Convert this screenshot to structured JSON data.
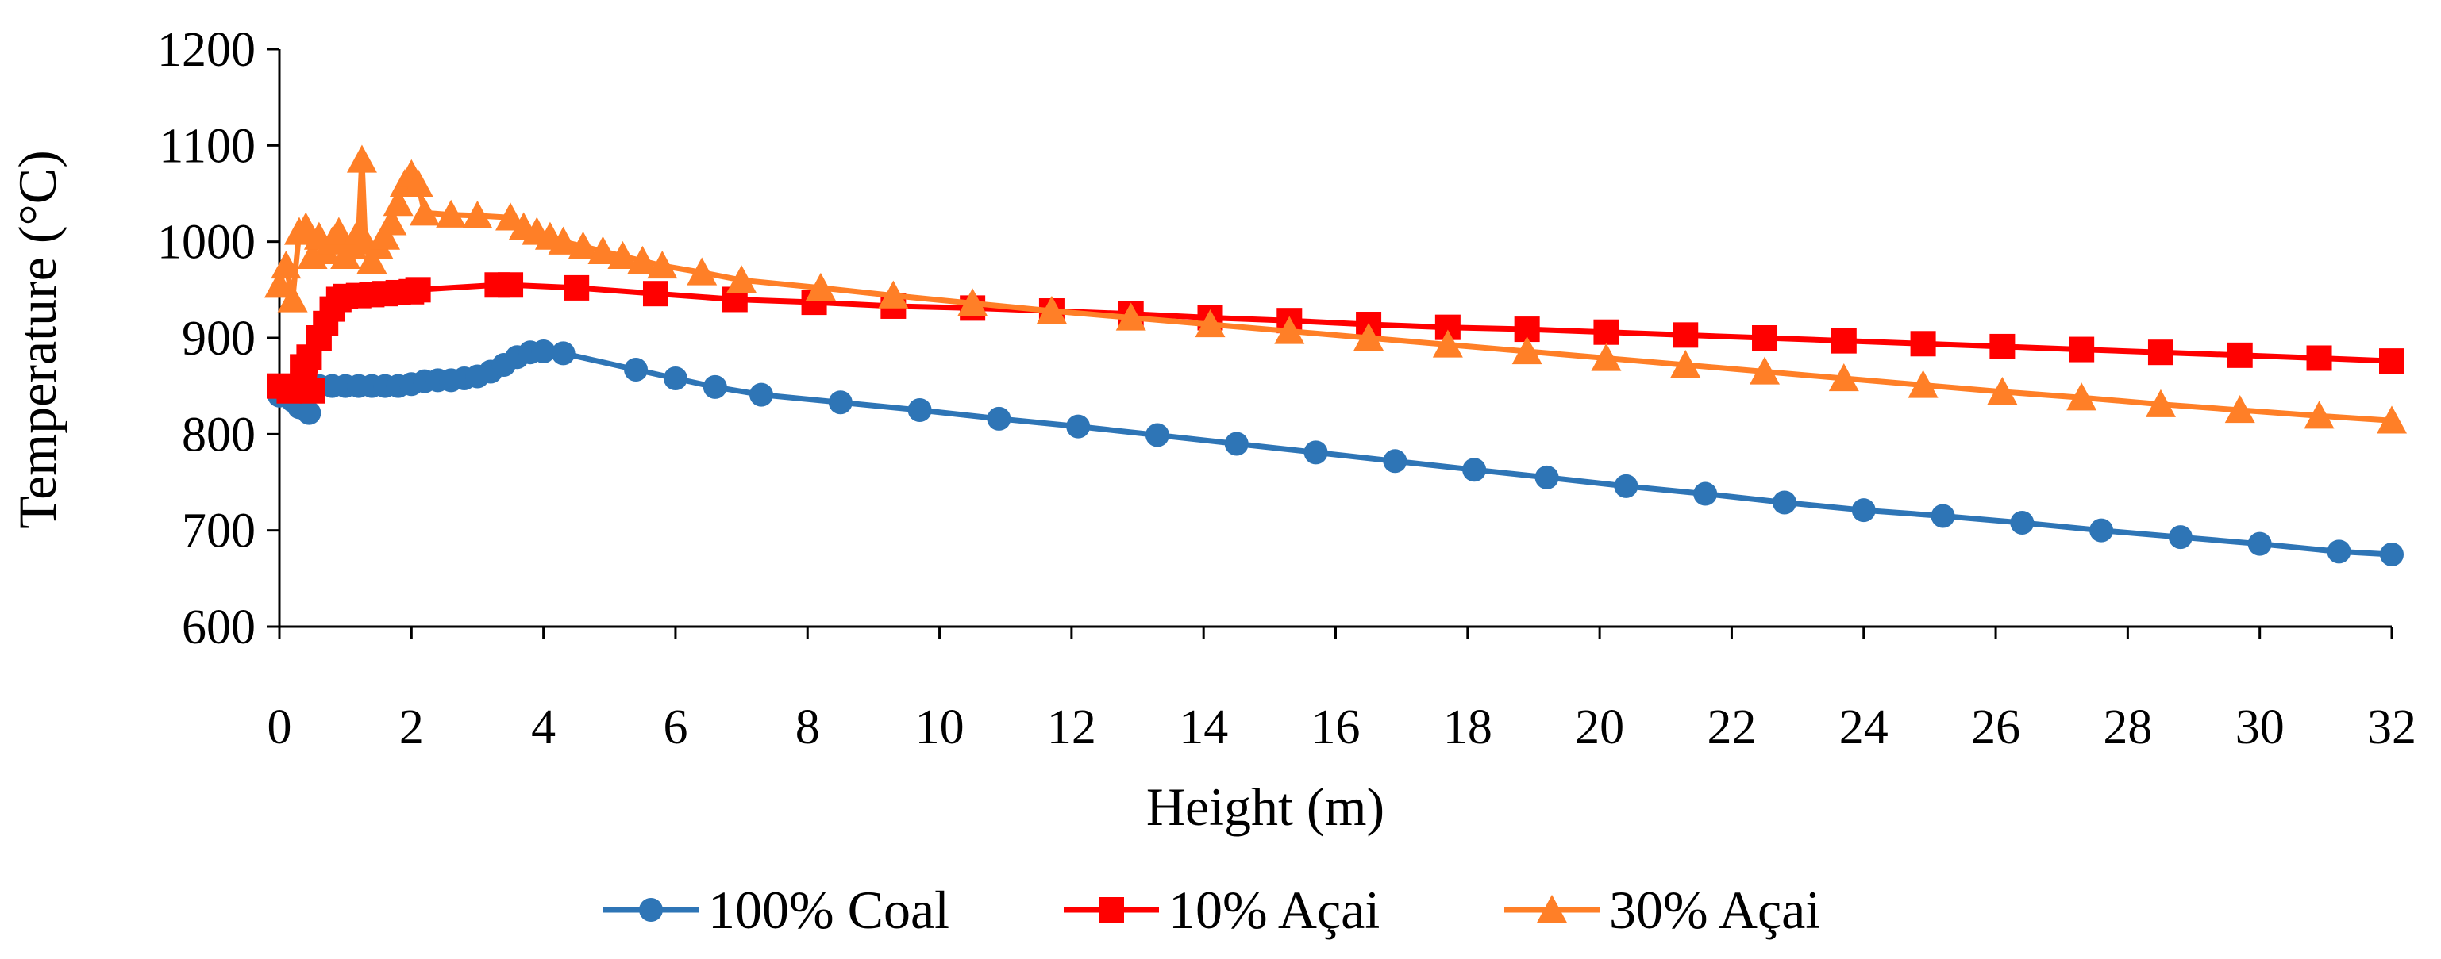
{
  "chart_data": {
    "type": "line",
    "title": "",
    "xlabel": "Height (m)",
    "ylabel": "Temperature (°C)",
    "xlim": [
      0,
      32
    ],
    "ylim": [
      600,
      1200
    ],
    "xticks": [
      "0",
      "2",
      "4",
      "6",
      "8",
      "10",
      "12",
      "14",
      "16",
      "18",
      "20",
      "22",
      "24",
      "26",
      "28",
      "30",
      "32"
    ],
    "yticks": [
      "600",
      "700",
      "800",
      "900",
      "1000",
      "1100",
      "1200"
    ],
    "grid": false,
    "legend_position": "bottom",
    "series": [
      {
        "name": "100% Coal",
        "color": "#2e75b6",
        "marker": "circle",
        "points": [
          [
            0,
            840
          ],
          [
            0.2,
            835
          ],
          [
            0.3,
            828
          ],
          [
            0.45,
            822
          ],
          [
            0.5,
            848
          ],
          [
            0.6,
            850
          ],
          [
            0.8,
            850
          ],
          [
            1.0,
            850
          ],
          [
            1.2,
            850
          ],
          [
            1.4,
            850
          ],
          [
            1.6,
            850
          ],
          [
            1.8,
            850
          ],
          [
            2.0,
            852
          ],
          [
            2.2,
            855
          ],
          [
            2.4,
            856
          ],
          [
            2.6,
            856
          ],
          [
            2.8,
            858
          ],
          [
            3.0,
            860
          ],
          [
            3.2,
            865
          ],
          [
            3.4,
            872
          ],
          [
            3.6,
            880
          ],
          [
            3.8,
            885
          ],
          [
            4.0,
            886
          ],
          [
            4.3,
            884
          ],
          [
            5.4,
            867
          ],
          [
            6.0,
            858
          ],
          [
            6.6,
            849
          ],
          [
            7.3,
            841
          ],
          [
            8.5,
            833
          ],
          [
            9.7,
            825
          ],
          [
            10.9,
            816
          ],
          [
            12.1,
            808
          ],
          [
            13.3,
            799
          ],
          [
            14.5,
            790
          ],
          [
            15.7,
            781
          ],
          [
            16.9,
            772
          ],
          [
            18.1,
            763
          ],
          [
            19.2,
            755
          ],
          [
            20.4,
            746
          ],
          [
            21.6,
            738
          ],
          [
            22.8,
            729
          ],
          [
            24.0,
            721
          ],
          [
            25.2,
            715
          ],
          [
            26.4,
            708
          ],
          [
            27.6,
            700
          ],
          [
            28.8,
            693
          ],
          [
            30.0,
            686
          ],
          [
            31.2,
            678
          ],
          [
            32.0,
            675
          ]
        ]
      },
      {
        "name": "10% Açai",
        "color": "#ff0000",
        "marker": "square",
        "points": [
          [
            0,
            850
          ],
          [
            0.15,
            845
          ],
          [
            0.3,
            848
          ],
          [
            0.35,
            870
          ],
          [
            0.45,
            880
          ],
          [
            0.5,
            845
          ],
          [
            0.6,
            900
          ],
          [
            0.7,
            915
          ],
          [
            0.8,
            930
          ],
          [
            0.9,
            940
          ],
          [
            1.0,
            943
          ],
          [
            1.2,
            944
          ],
          [
            1.4,
            945
          ],
          [
            1.6,
            946
          ],
          [
            1.8,
            947
          ],
          [
            2.0,
            948
          ],
          [
            2.1,
            950
          ],
          [
            3.3,
            955
          ],
          [
            3.5,
            955
          ],
          [
            4.5,
            952
          ],
          [
            5.7,
            946
          ],
          [
            6.9,
            940
          ],
          [
            8.1,
            937
          ],
          [
            9.3,
            933
          ],
          [
            10.5,
            931
          ],
          [
            11.7,
            928
          ],
          [
            12.9,
            925
          ],
          [
            14.1,
            921
          ],
          [
            15.3,
            918
          ],
          [
            16.5,
            914
          ],
          [
            17.7,
            911
          ],
          [
            18.9,
            909
          ],
          [
            20.1,
            906
          ],
          [
            21.3,
            903
          ],
          [
            22.5,
            900
          ],
          [
            23.7,
            897
          ],
          [
            24.9,
            894
          ],
          [
            26.1,
            891
          ],
          [
            27.3,
            888
          ],
          [
            28.5,
            885
          ],
          [
            29.7,
            882
          ],
          [
            30.9,
            879
          ],
          [
            32.0,
            876
          ]
        ]
      },
      {
        "name": "30% Açai",
        "color": "#ff7f27",
        "marker": "triangle",
        "points": [
          [
            0,
            955
          ],
          [
            0.1,
            975
          ],
          [
            0.2,
            940
          ],
          [
            0.3,
            1010
          ],
          [
            0.4,
            1015
          ],
          [
            0.5,
            985
          ],
          [
            0.6,
            1005
          ],
          [
            0.7,
            990
          ],
          [
            0.8,
            1000
          ],
          [
            0.9,
            1010
          ],
          [
            1.0,
            985
          ],
          [
            1.1,
            995
          ],
          [
            1.2,
            1010
          ],
          [
            1.25,
            1085
          ],
          [
            1.3,
            1000
          ],
          [
            1.4,
            980
          ],
          [
            1.5,
            995
          ],
          [
            1.6,
            1005
          ],
          [
            1.7,
            1020
          ],
          [
            1.8,
            1040
          ],
          [
            1.9,
            1060
          ],
          [
            2.0,
            1070
          ],
          [
            2.1,
            1060
          ],
          [
            2.2,
            1030
          ],
          [
            2.6,
            1028
          ],
          [
            3.0,
            1027
          ],
          [
            3.5,
            1025
          ],
          [
            3.7,
            1015
          ],
          [
            3.9,
            1010
          ],
          [
            4.1,
            1005
          ],
          [
            4.3,
            1000
          ],
          [
            4.6,
            995
          ],
          [
            4.9,
            990
          ],
          [
            5.2,
            985
          ],
          [
            5.5,
            980
          ],
          [
            5.8,
            975
          ],
          [
            6.4,
            968
          ],
          [
            7.0,
            960
          ],
          [
            8.2,
            952
          ],
          [
            9.3,
            944
          ],
          [
            10.5,
            936
          ],
          [
            11.7,
            928
          ],
          [
            12.9,
            921
          ],
          [
            14.1,
            914
          ],
          [
            15.3,
            907
          ],
          [
            16.5,
            900
          ],
          [
            17.7,
            893
          ],
          [
            18.9,
            886
          ],
          [
            20.1,
            879
          ],
          [
            21.3,
            872
          ],
          [
            22.5,
            865
          ],
          [
            23.7,
            858
          ],
          [
            24.9,
            851
          ],
          [
            26.1,
            844
          ],
          [
            27.3,
            838
          ],
          [
            28.5,
            831
          ],
          [
            29.7,
            825
          ],
          [
            30.9,
            819
          ],
          [
            32.0,
            814
          ]
        ]
      }
    ]
  }
}
